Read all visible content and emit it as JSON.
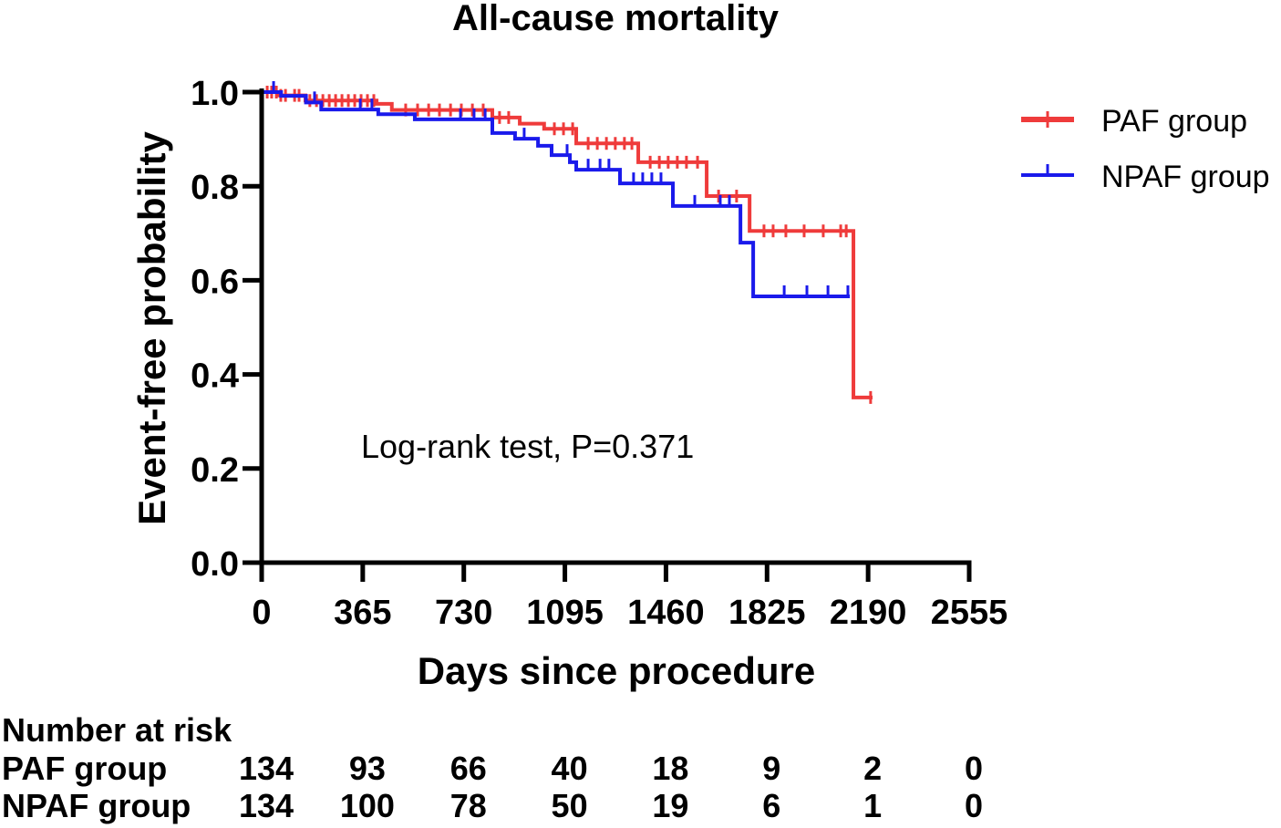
{
  "chart_data": {
    "type": "line",
    "title": "All-cause mortality",
    "xlabel": "Days since procedure",
    "ylabel": "Event-free probability",
    "xlim": [
      0,
      2555
    ],
    "ylim": [
      0,
      1.0
    ],
    "xticks": [
      0,
      365,
      730,
      1095,
      1460,
      1825,
      2190,
      2555
    ],
    "yticks": [
      0.0,
      0.2,
      0.4,
      0.6,
      0.8,
      1.0
    ],
    "grid": false,
    "legend_position": "right",
    "annotation": "Log-rank test, P=0.371",
    "series": [
      {
        "name": "PAF group",
        "color": "#ef3b3b",
        "x": [
          0,
          60,
          158,
          415,
          470,
          833,
          932,
          1020,
          1136,
          1360,
          1607,
          1762,
          2137
        ],
        "y": [
          1.0,
          0.993,
          0.982,
          0.975,
          0.962,
          0.946,
          0.933,
          0.922,
          0.891,
          0.851,
          0.779,
          0.705,
          0.351
        ],
        "end_x": 2206,
        "censored_x": [
          20,
          36,
          53,
          69,
          86,
          119,
          135,
          174,
          198,
          221,
          244,
          267,
          290,
          313,
          336,
          359,
          382,
          405,
          520,
          563,
          603,
          642,
          682,
          721,
          761,
          800,
          859,
          892,
          1057,
          1090,
          1123,
          1179,
          1212,
          1245,
          1277,
          1310,
          1337,
          1403,
          1436,
          1468,
          1501,
          1534,
          1574,
          1650,
          1715,
          1814,
          1847,
          1893,
          1959,
          2028,
          2091,
          2111,
          2199
        ]
      },
      {
        "name": "NPAF group",
        "color": "#1a1aeb",
        "x": [
          0,
          70,
          160,
          215,
          421,
          553,
          833,
          915,
          998,
          1047,
          1113,
          1136,
          1294,
          1485,
          1729,
          1775
        ],
        "y": [
          1.0,
          0.992,
          0.978,
          0.963,
          0.953,
          0.942,
          0.913,
          0.901,
          0.886,
          0.866,
          0.851,
          0.835,
          0.806,
          0.758,
          0.68,
          0.566
        ],
        "end_x": 2124,
        "censored_x": [
          43,
          191,
          356,
          398,
          718,
          767,
          807,
          948,
          1103,
          1179,
          1222,
          1254,
          1343,
          1376,
          1409,
          1442,
          1564,
          1656,
          1689,
          1887,
          1969,
          2045,
          2117
        ]
      }
    ],
    "risk_table": {
      "title": "Number at risk",
      "rows": [
        {
          "label": "PAF group",
          "values": [
            134,
            93,
            66,
            40,
            18,
            9,
            2,
            0
          ]
        },
        {
          "label": "NPAF group",
          "values": [
            134,
            100,
            78,
            50,
            19,
            6,
            1,
            0
          ]
        }
      ]
    }
  }
}
